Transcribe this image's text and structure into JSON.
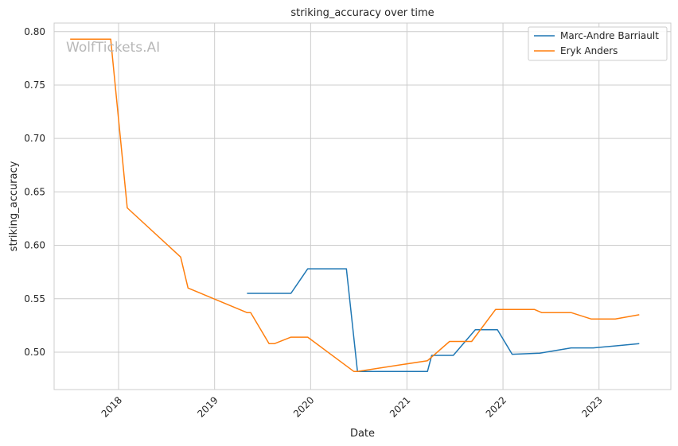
{
  "watermark": "WolfTickets.AI",
  "chart_data": {
    "type": "line",
    "title": "striking_accuracy over time",
    "xlabel": "Date",
    "ylabel": "striking_accuracy",
    "xlim": [
      "2017-05-01",
      "2023-10-01"
    ],
    "ylim": [
      0.465,
      0.808
    ],
    "x_ticks": [
      "2018-01-01",
      "2019-01-01",
      "2020-01-01",
      "2021-01-01",
      "2022-01-01",
      "2023-01-01"
    ],
    "x_tick_labels": [
      "2018",
      "2019",
      "2020",
      "2021",
      "2022",
      "2023"
    ],
    "y_ticks": [
      0.5,
      0.55,
      0.6,
      0.65,
      0.7,
      0.75,
      0.8
    ],
    "y_tick_labels": [
      "0.50",
      "0.55",
      "0.60",
      "0.65",
      "0.70",
      "0.75",
      "0.80"
    ],
    "grid": true,
    "legend_position": "top-right",
    "series": [
      {
        "name": "Marc-Andre Barriault",
        "color": "#1f77b4",
        "points": [
          [
            "2019-05-04",
            0.555
          ],
          [
            "2019-10-18",
            0.555
          ],
          [
            "2019-12-21",
            0.578
          ],
          [
            "2020-05-16",
            0.578
          ],
          [
            "2020-06-27",
            0.482
          ],
          [
            "2021-03-20",
            0.482
          ],
          [
            "2021-04-05",
            0.497
          ],
          [
            "2021-06-26",
            0.497
          ],
          [
            "2021-09-18",
            0.521
          ],
          [
            "2021-12-11",
            0.521
          ],
          [
            "2022-02-05",
            0.498
          ],
          [
            "2022-05-21",
            0.499
          ],
          [
            "2022-09-17",
            0.504
          ],
          [
            "2022-12-10",
            0.504
          ],
          [
            "2023-03-11",
            0.506
          ],
          [
            "2023-06-03",
            0.508
          ]
        ]
      },
      {
        "name": "Eryk Anders",
        "color": "#ff7f0e",
        "points": [
          [
            "2017-07-01",
            0.793
          ],
          [
            "2017-12-02",
            0.793
          ],
          [
            "2018-02-03",
            0.635
          ],
          [
            "2018-08-25",
            0.589
          ],
          [
            "2018-09-22",
            0.56
          ],
          [
            "2019-05-04",
            0.537
          ],
          [
            "2019-05-18",
            0.537
          ],
          [
            "2019-07-27",
            0.508
          ],
          [
            "2019-08-17",
            0.508
          ],
          [
            "2019-10-18",
            0.514
          ],
          [
            "2019-12-21",
            0.514
          ],
          [
            "2020-06-13",
            0.482
          ],
          [
            "2020-06-27",
            0.482
          ],
          [
            "2021-03-20",
            0.492
          ],
          [
            "2021-06-12",
            0.51
          ],
          [
            "2021-09-04",
            0.51
          ],
          [
            "2021-12-04",
            0.54
          ],
          [
            "2022-04-30",
            0.54
          ],
          [
            "2022-05-28",
            0.537
          ],
          [
            "2022-09-17",
            0.537
          ],
          [
            "2022-12-03",
            0.531
          ],
          [
            "2023-03-04",
            0.531
          ],
          [
            "2023-06-03",
            0.535
          ]
        ]
      }
    ]
  }
}
